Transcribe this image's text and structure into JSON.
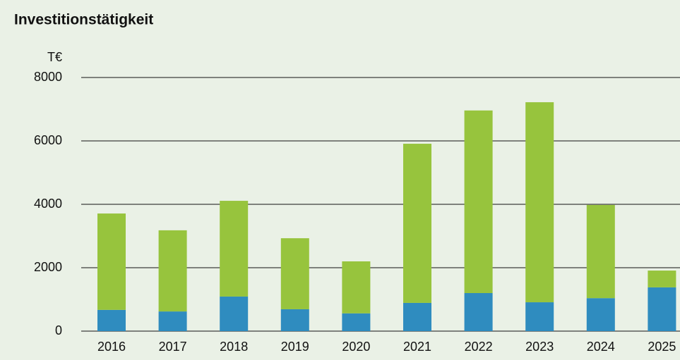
{
  "chart_data": {
    "type": "stacked_bar",
    "title": "Investitionstätigkeit",
    "y_label": "T€",
    "categories": [
      "2016",
      "2017",
      "2018",
      "2019",
      "2020",
      "2021",
      "2022",
      "2023",
      "2024",
      "2025"
    ],
    "series": [
      {
        "color": "#2f8cbf",
        "values": [
          670,
          620,
          1090,
          690,
          560,
          890,
          1200,
          910,
          1040,
          1380
        ]
      },
      {
        "color": "#97c43d",
        "values": [
          3040,
          2560,
          3020,
          2240,
          1640,
          5020,
          5760,
          6310,
          2940,
          530
        ]
      }
    ],
    "ylim": [
      0,
      8000
    ],
    "yticks": [
      0,
      2000,
      4000,
      6000,
      8000
    ],
    "grid": true
  }
}
